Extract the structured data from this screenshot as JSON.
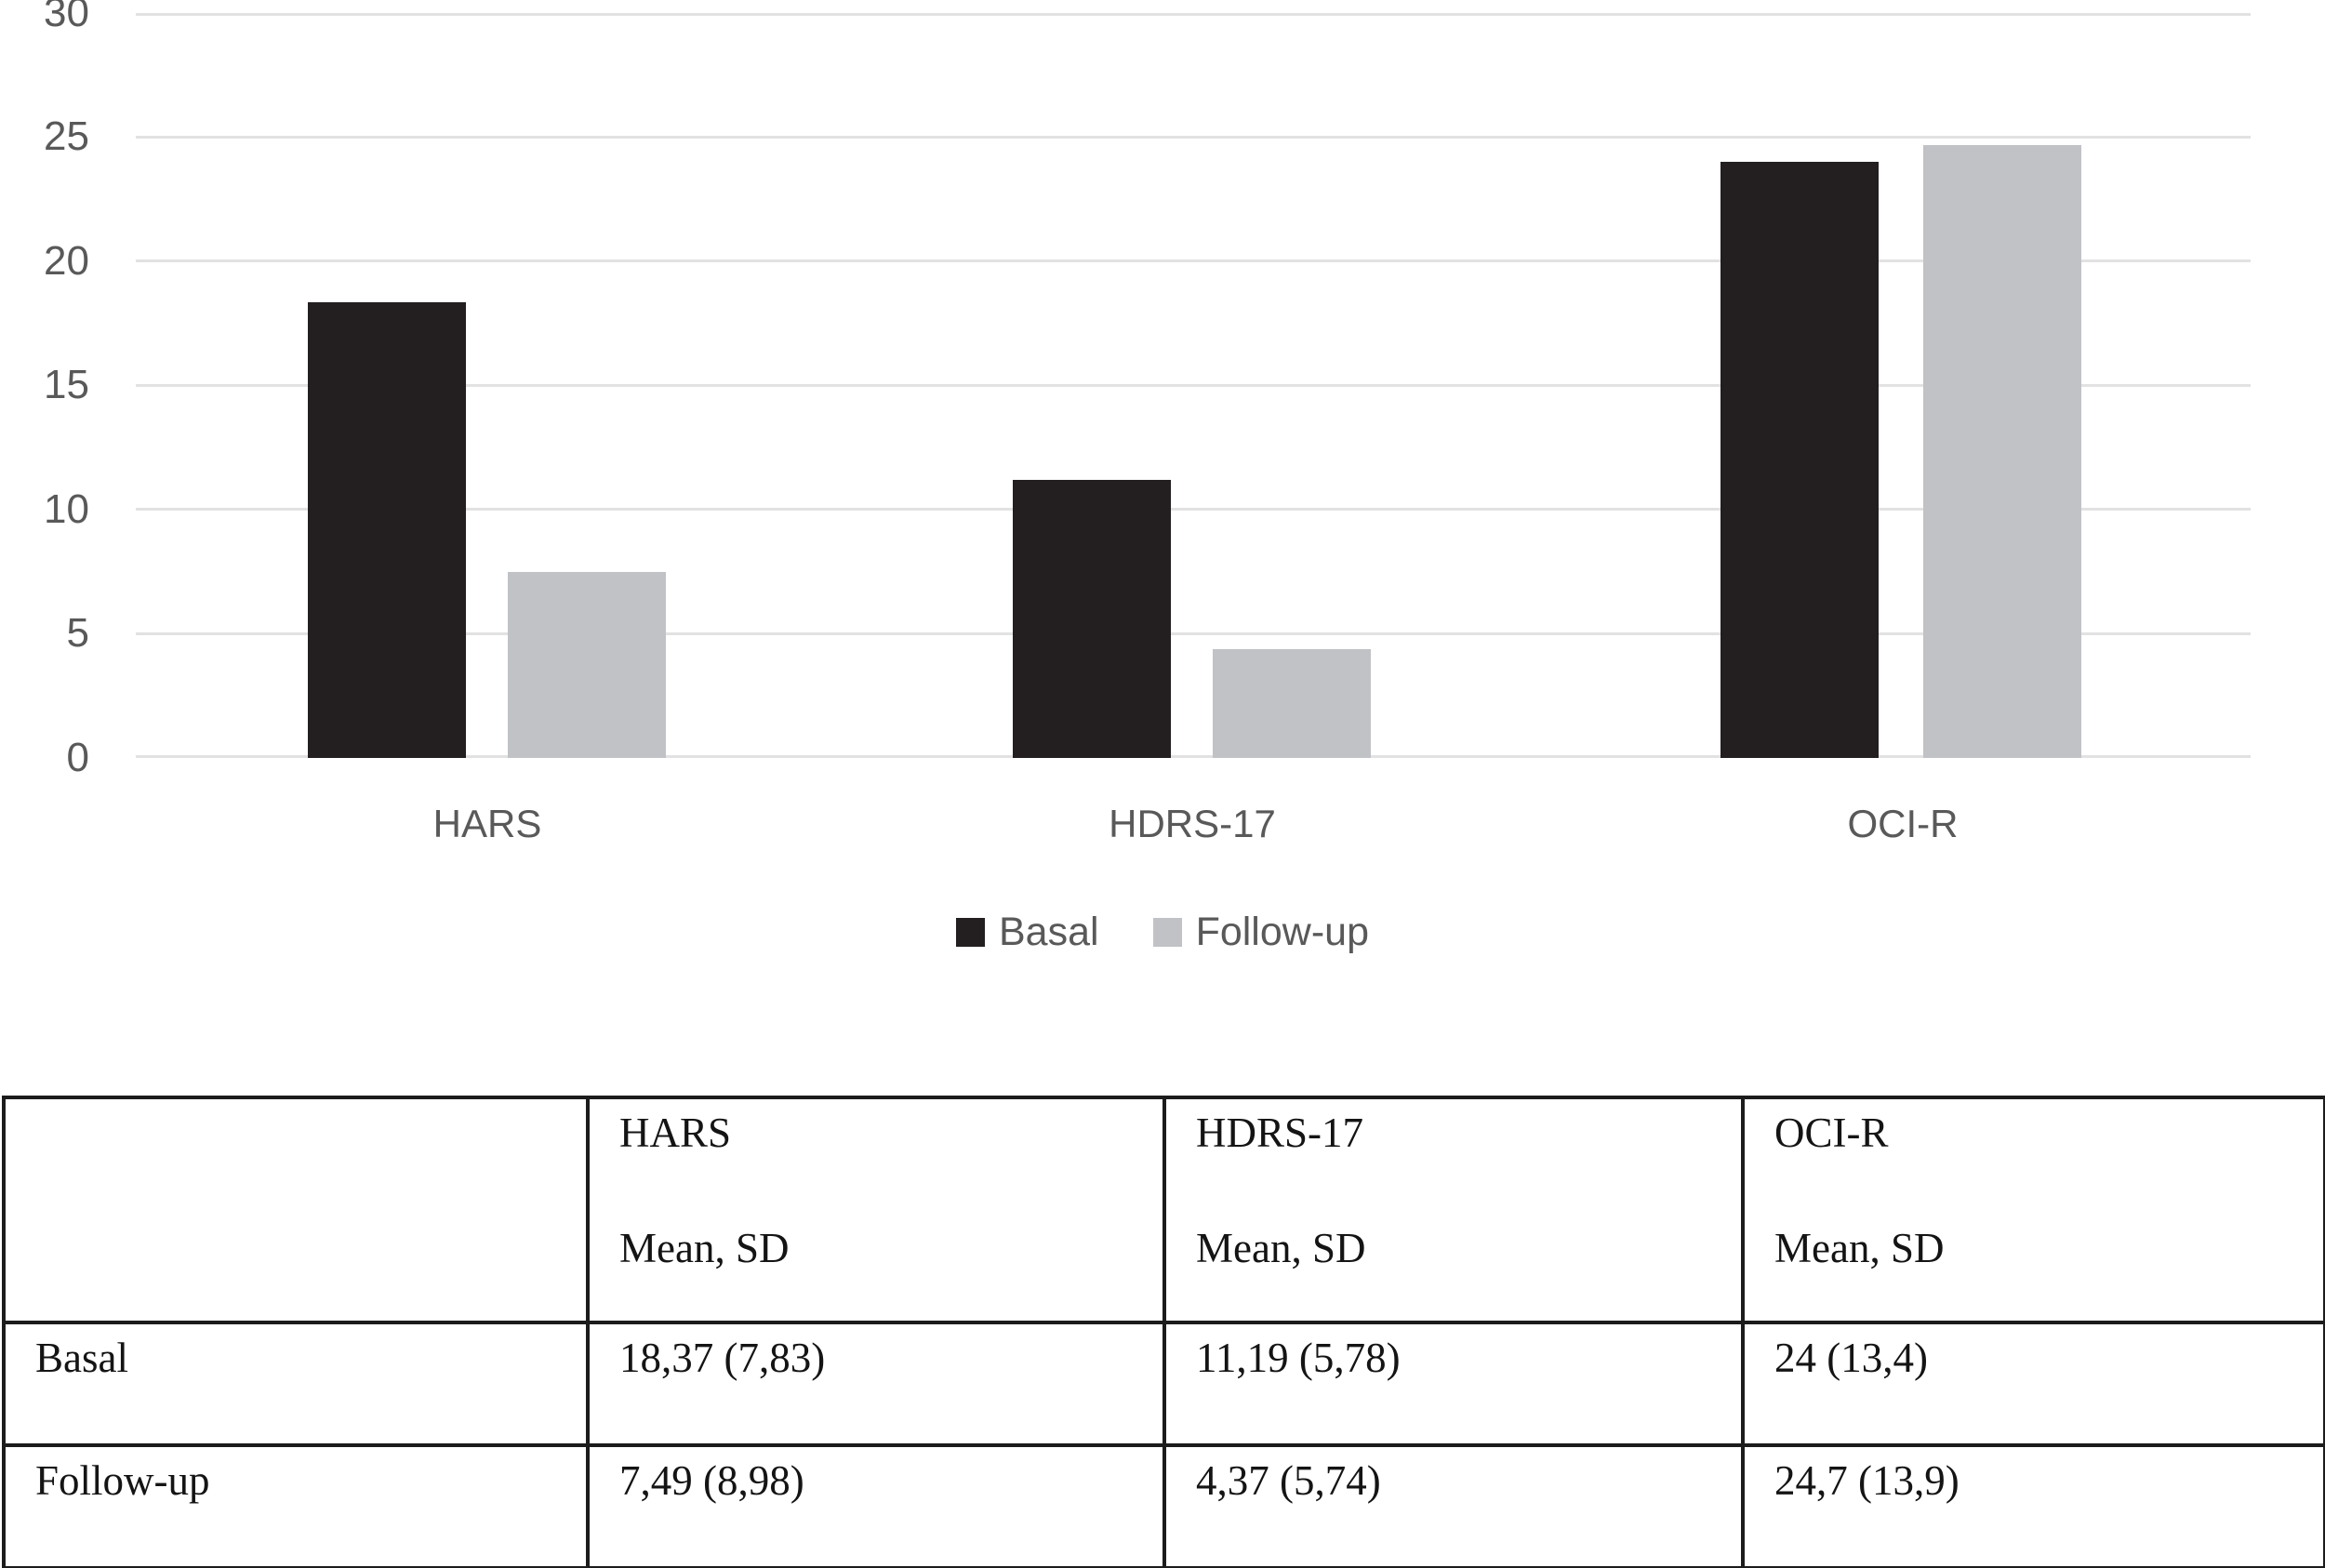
{
  "chart_data": {
    "type": "bar",
    "title": "",
    "xlabel": "",
    "ylabel": "",
    "categories": [
      "HARS",
      "HDRS-17",
      "OCI-R"
    ],
    "series": [
      {
        "name": "Basal",
        "color": "#231f20",
        "values": [
          18.37,
          11.19,
          24.0
        ]
      },
      {
        "name": "Follow-up",
        "color": "#c0c2c5",
        "values": [
          7.49,
          4.37,
          24.7
        ]
      }
    ],
    "ylim": [
      0,
      30
    ],
    "yticks": [
      0,
      5,
      10,
      15,
      20,
      25,
      30
    ],
    "grid": true,
    "gridline_color": "#e2e2e2",
    "axis_text_color": "#595959",
    "legend_position": "bottom-center"
  },
  "table": {
    "columns": [
      {
        "title": "",
        "subtitle": ""
      },
      {
        "title": "HARS",
        "subtitle": "Mean, SD"
      },
      {
        "title": "HDRS-17",
        "subtitle": "Mean, SD"
      },
      {
        "title": "OCI-R",
        "subtitle": "Mean, SD"
      }
    ],
    "rows": [
      {
        "label": "Basal",
        "values": [
          "18,37 (7,83)",
          "11,19 (5,78)",
          "24 (13,4)"
        ]
      },
      {
        "label": "Follow-up",
        "values": [
          "7,49 (8,98)",
          "4,37 (5,74)",
          "24,7 (13,9)"
        ]
      }
    ]
  }
}
